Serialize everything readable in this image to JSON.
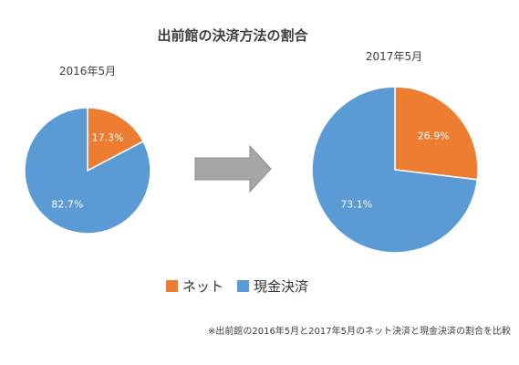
{
  "title": "出前館の決済方法の割合",
  "note": "※出前館の2016年5月と2017年5月のネット決済と現金決済の割合を比較",
  "legend": [
    {
      "name": "ネット",
      "color": "#ED7D31"
    },
    {
      "name": "現金決済",
      "color": "#5B9BD5"
    }
  ],
  "chart_data": [
    {
      "type": "pie",
      "title": "2016年5月",
      "series": [
        {
          "name": "ネット",
          "value": 17.3,
          "label": "17.3%",
          "color": "#ED7D31"
        },
        {
          "name": "現金決済",
          "value": 82.7,
          "label": "82.7%",
          "color": "#5B9BD5"
        }
      ]
    },
    {
      "type": "pie",
      "title": "2017年5月",
      "series": [
        {
          "name": "ネット",
          "value": 26.9,
          "label": "26.9%",
          "color": "#ED7D31"
        },
        {
          "name": "現金決済",
          "value": 73.1,
          "label": "73.1%",
          "color": "#5B9BD5"
        }
      ]
    }
  ],
  "arrow_color": "#A6A6A6"
}
